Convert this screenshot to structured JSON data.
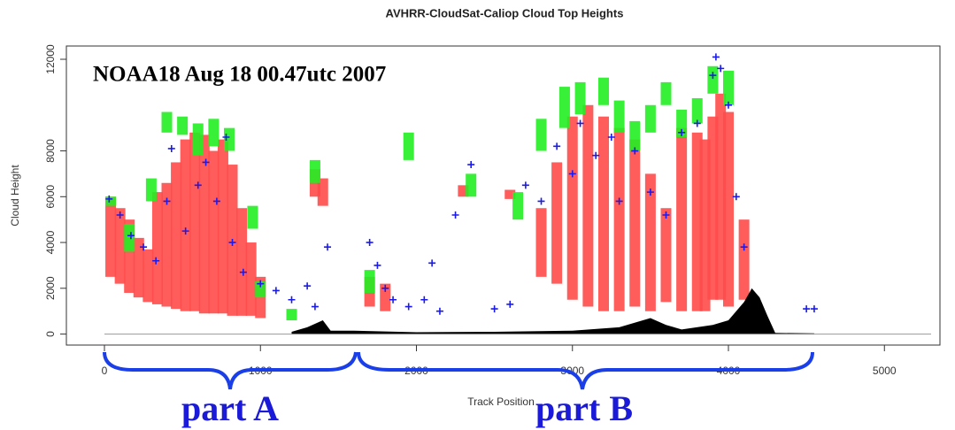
{
  "chart_data": {
    "type": "scatter",
    "title": "AVHRR-CloudSat-Caliop Cloud Top Heights",
    "x_label": "Track Position",
    "y_label": "Cloud Height",
    "annotations": [
      "NOAA18 Aug 18 00.47utc 2007",
      "part A",
      "part B"
    ],
    "xlim": [
      -244,
      5356
    ],
    "ylim": [
      -480,
      12580
    ],
    "xticks": [
      0,
      1000,
      2000,
      3000,
      4000,
      5000
    ],
    "yticks": [
      0,
      2000,
      4000,
      6000,
      8000,
      12000
    ],
    "series": [
      {
        "color": "#ff4a4a",
        "marker": "range",
        "x": [
          40,
          100,
          160,
          220,
          280,
          340,
          400,
          460,
          520,
          580,
          640,
          700,
          760,
          820,
          880,
          940,
          1000,
          1350,
          1400,
          1700,
          1800,
          2300,
          2600,
          2800,
          2900,
          3000,
          3100,
          3200,
          3300,
          3400,
          3500,
          3600,
          3700,
          3800,
          3850,
          3900,
          3950,
          4000,
          4100
        ],
        "values": [
          6000,
          5500,
          5000,
          4200,
          3700,
          6200,
          6600,
          7500,
          8500,
          8800,
          8700,
          8000,
          8500,
          7400,
          5500,
          4000,
          2500,
          7200,
          6800,
          2500,
          2200,
          6500,
          6300,
          5500,
          7500,
          9500,
          10000,
          9500,
          9000,
          8500,
          7000,
          5500,
          9000,
          8800,
          8500,
          9500,
          10500,
          9700,
          5000
        ],
        "base": [
          2500,
          2200,
          1800,
          1600,
          1400,
          1300,
          1200,
          1100,
          1000,
          1000,
          900,
          900,
          900,
          800,
          800,
          800,
          700,
          6000,
          5600,
          1200,
          1000,
          6000,
          5900,
          2500,
          2200,
          1500,
          1200,
          1000,
          1000,
          1200,
          1000,
          1400,
          1000,
          1000,
          1000,
          1500,
          1500,
          1200,
          1500
        ]
      },
      {
        "color": "#22ee22",
        "marker": "range",
        "x": [
          40,
          160,
          300,
          400,
          500,
          600,
          700,
          800,
          950,
          1000,
          1200,
          1350,
          1700,
          1950,
          2350,
          2650,
          2800,
          2950,
          3050,
          3200,
          3300,
          3400,
          3500,
          3600,
          3700,
          3800,
          3900,
          4000
        ],
        "values": [
          6000,
          4800,
          6800,
          9700,
          9500,
          9200,
          9400,
          9000,
          5600,
          2300,
          1100,
          7600,
          2800,
          8800,
          7000,
          6200,
          9400,
          10800,
          11000,
          11200,
          10200,
          9300,
          10000,
          11000,
          9800,
          10300,
          11700,
          11500
        ],
        "base": [
          5600,
          3600,
          5800,
          8800,
          8700,
          7800,
          8200,
          8000,
          4600,
          1600,
          600,
          6600,
          1800,
          7600,
          6000,
          5000,
          8000,
          9000,
          9600,
          10000,
          8800,
          8000,
          8800,
          10000,
          8600,
          9200,
          10500,
          10000
        ]
      },
      {
        "color": "#1a1aee",
        "marker": "plus",
        "x": [
          30,
          100,
          170,
          250,
          330,
          400,
          430,
          520,
          600,
          650,
          720,
          780,
          820,
          890,
          1000,
          1100,
          1200,
          1300,
          1350,
          1430,
          1700,
          1750,
          1800,
          1850,
          1950,
          2050,
          2100,
          2150,
          2250,
          2350,
          2500,
          2600,
          2700,
          2800,
          2900,
          3000,
          3050,
          3150,
          3250,
          3300,
          3400,
          3500,
          3600,
          3700,
          3800,
          3900,
          3920,
          3950,
          4000,
          4050,
          4100,
          4500,
          4550
        ],
        "values": [
          5900,
          5200,
          4300,
          3800,
          3200,
          5800,
          8100,
          4500,
          6500,
          7500,
          5800,
          8600,
          4000,
          2700,
          2200,
          1900,
          1500,
          2100,
          1200,
          3800,
          4000,
          3000,
          2000,
          1500,
          1200,
          1500,
          3100,
          1000,
          5200,
          7400,
          1100,
          1300,
          6500,
          5800,
          8200,
          7000,
          9200,
          7800,
          8600,
          5800,
          8000,
          6200,
          5200,
          8800,
          9200,
          11300,
          12100,
          11600,
          10000,
          6000,
          3800,
          1100,
          1100
        ]
      },
      {
        "color": "#000000",
        "marker": "area",
        "x": [
          1200,
          1300,
          1400,
          1450,
          1600,
          2000,
          2500,
          3000,
          3300,
          3500,
          3600,
          3700,
          3900,
          4000,
          4100,
          4150,
          4200,
          4250,
          4300,
          4550
        ],
        "values": [
          100,
          300,
          600,
          150,
          150,
          80,
          100,
          150,
          300,
          700,
          400,
          200,
          400,
          600,
          1400,
          2000,
          1600,
          800,
          50,
          30
        ]
      }
    ]
  }
}
